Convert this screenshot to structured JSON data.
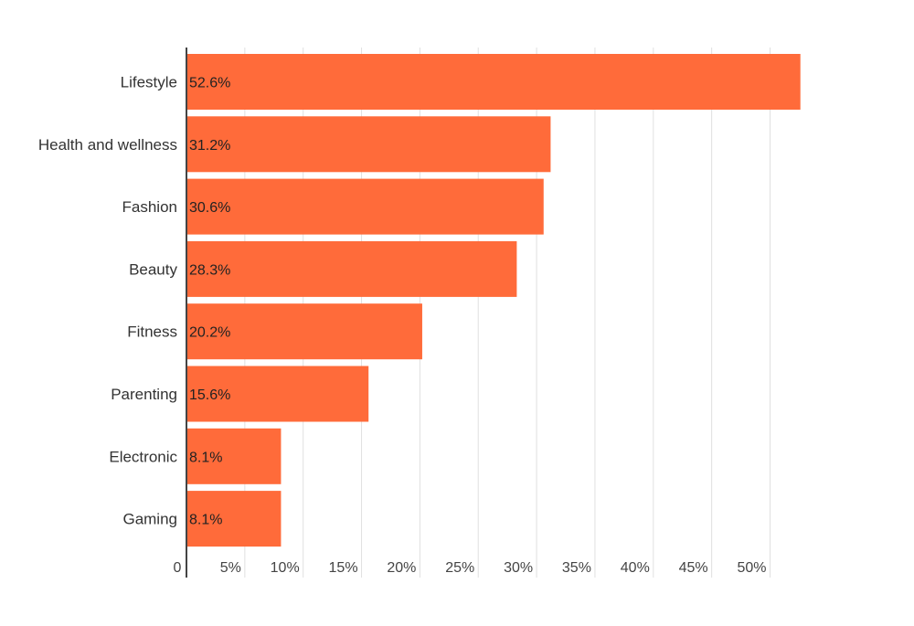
{
  "chart_data": {
    "type": "bar",
    "orientation": "horizontal",
    "categories": [
      "Lifestyle",
      "Health and wellness",
      "Fashion",
      "Beauty",
      "Fitness",
      "Parenting",
      "Electronic",
      "Gaming"
    ],
    "values": [
      52.6,
      31.2,
      30.6,
      28.3,
      20.2,
      15.6,
      8.1,
      8.1
    ],
    "value_labels": [
      "52.6%",
      "31.2%",
      "30.6%",
      "28.3%",
      "20.2%",
      "15.6%",
      "8.1%",
      "8.1%"
    ],
    "x_ticks": [
      0,
      5,
      10,
      15,
      20,
      25,
      30,
      35,
      40,
      45,
      50
    ],
    "x_tick_labels": [
      "0",
      "5%",
      "10%",
      "15%",
      "20%",
      "25%",
      "30%",
      "35%",
      "40%",
      "45%",
      "50%"
    ],
    "xlim": [
      0,
      52.6
    ],
    "grid": "vertical",
    "bar_color": "#ff6b3a",
    "title": "",
    "xlabel": "",
    "ylabel": ""
  }
}
